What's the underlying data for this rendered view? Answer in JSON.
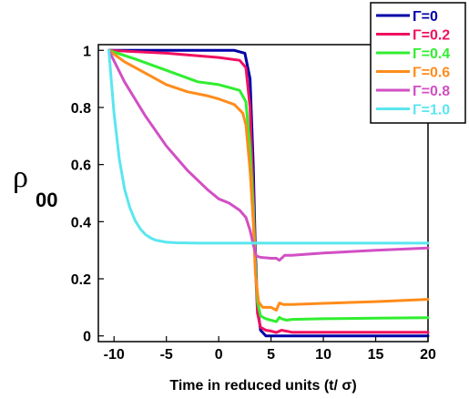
{
  "chart_data": {
    "type": "line",
    "title": "",
    "xlabel": "Time in reduced units (t/ σ)",
    "ylabel": {
      "main": "ρ",
      "subscript": "00"
    },
    "xlim": [
      -11.5,
      20
    ],
    "ylim": [
      -0.02,
      1.02
    ],
    "xticks": [
      "-10",
      "-5",
      "0",
      "5",
      "10",
      "15",
      "20"
    ],
    "yticks": [
      "0",
      "0.2",
      "0.4",
      "0.6",
      "0.8",
      "1"
    ],
    "xtick_values": [
      -10,
      -5,
      0,
      5,
      10,
      15,
      20
    ],
    "ytick_values": [
      0,
      0.2,
      0.4,
      0.6,
      0.8,
      1
    ],
    "grid": false,
    "legend_position": "top-right",
    "series": [
      {
        "name": "Γ=0",
        "color": "#0000a8",
        "x": [
          -10.5,
          -5,
          0,
          1.5,
          2.5,
          3,
          3.3,
          3.5,
          3.7,
          4,
          4.5,
          5,
          6,
          10,
          15,
          20
        ],
        "y": [
          1.0,
          1.0,
          1.0,
          1.0,
          0.99,
          0.9,
          0.6,
          0.3,
          0.1,
          0.02,
          0.0,
          0.0,
          0.0,
          0.0,
          0.0,
          0.0
        ]
      },
      {
        "name": "Γ=0.2",
        "color": "#f01060",
        "x": [
          -10.5,
          -5,
          0,
          2,
          2.6,
          3,
          3.3,
          3.5,
          3.7,
          4,
          4.5,
          5,
          5.5,
          6,
          7,
          10,
          15,
          20
        ],
        "y": [
          1.0,
          0.99,
          0.975,
          0.965,
          0.94,
          0.8,
          0.5,
          0.25,
          0.08,
          0.03,
          0.02,
          0.017,
          0.012,
          0.02,
          0.013,
          0.013,
          0.013,
          0.013
        ]
      },
      {
        "name": "Γ=0.4",
        "color": "#30ee30",
        "x": [
          -10.5,
          -8,
          -5,
          -2,
          0,
          2,
          2.6,
          3,
          3.3,
          3.5,
          3.7,
          4,
          4.5,
          5,
          5.5,
          5.8,
          6,
          6.5,
          7,
          10,
          15,
          20
        ],
        "y": [
          1.0,
          0.97,
          0.93,
          0.89,
          0.88,
          0.86,
          0.82,
          0.66,
          0.45,
          0.25,
          0.12,
          0.07,
          0.06,
          0.055,
          0.05,
          0.065,
          0.06,
          0.055,
          0.058,
          0.06,
          0.062,
          0.064
        ]
      },
      {
        "name": "Γ=0.6",
        "color": "#ff8c1a",
        "x": [
          -10.5,
          -9,
          -7,
          -5,
          -3,
          -1,
          0,
          1.5,
          2.3,
          2.6,
          3,
          3.3,
          3.5,
          3.8,
          4.2,
          5,
          5.5,
          5.8,
          6.2,
          7,
          10,
          15,
          20
        ],
        "y": [
          1.0,
          0.96,
          0.92,
          0.88,
          0.855,
          0.84,
          0.83,
          0.81,
          0.78,
          0.74,
          0.58,
          0.4,
          0.22,
          0.12,
          0.1,
          0.1,
          0.09,
          0.115,
          0.11,
          0.11,
          0.114,
          0.12,
          0.128
        ]
      },
      {
        "name": "Γ=0.8",
        "color": "#d24fc4",
        "x": [
          -10.5,
          -9,
          -7,
          -5,
          -3,
          -1,
          0,
          1,
          2,
          2.6,
          3,
          3.3,
          3.6,
          4,
          5,
          5.5,
          5.8,
          6.3,
          7,
          10,
          15,
          20
        ],
        "y": [
          1.0,
          0.89,
          0.77,
          0.665,
          0.58,
          0.51,
          0.48,
          0.465,
          0.44,
          0.415,
          0.37,
          0.32,
          0.28,
          0.275,
          0.272,
          0.272,
          0.265,
          0.282,
          0.282,
          0.29,
          0.3,
          0.308
        ]
      },
      {
        "name": "Γ=1.0",
        "color": "#5ae6f0",
        "x": [
          -10.5,
          -10,
          -9.5,
          -9,
          -8.5,
          -8,
          -7.5,
          -7,
          -6.5,
          -6,
          -5,
          -4,
          -2,
          0,
          5,
          10,
          15,
          20
        ],
        "y": [
          1.0,
          0.78,
          0.62,
          0.515,
          0.45,
          0.405,
          0.375,
          0.355,
          0.343,
          0.335,
          0.328,
          0.326,
          0.325,
          0.325,
          0.325,
          0.325,
          0.325,
          0.325
        ]
      }
    ]
  }
}
